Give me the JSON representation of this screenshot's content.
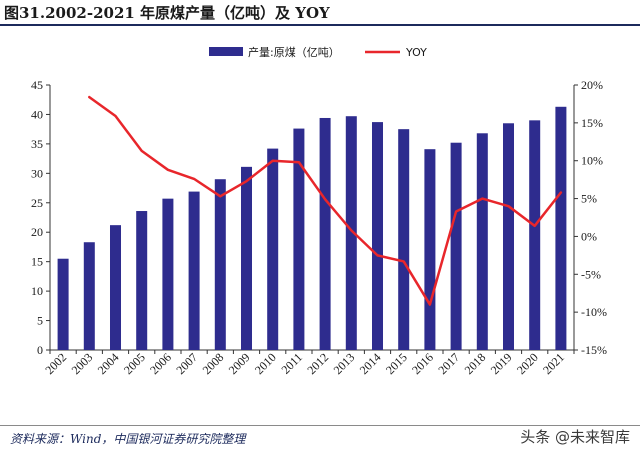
{
  "header": {
    "title": "图31.2002-2021 年原煤产量（亿吨）及 YOY"
  },
  "footer": {
    "source": "资料来源：Wind，中国银河证券研究院整理",
    "watermark": "头条 @未来智库"
  },
  "chart_data": {
    "type": "bar",
    "categories": [
      "2002",
      "2003",
      "2004",
      "2005",
      "2006",
      "2007",
      "2008",
      "2009",
      "2010",
      "2011",
      "2012",
      "2013",
      "2014",
      "2015",
      "2016",
      "2017",
      "2018",
      "2019",
      "2020",
      "2021"
    ],
    "series": [
      {
        "name": "产量:原煤（亿吨）",
        "type": "bar",
        "axis": "left",
        "color": "#2e2c8e",
        "values": [
          15.5,
          18.3,
          21.2,
          23.6,
          25.7,
          26.9,
          29.0,
          31.1,
          34.2,
          37.6,
          39.4,
          39.7,
          38.7,
          37.5,
          34.1,
          35.2,
          36.8,
          38.5,
          39.0,
          41.3
        ]
      },
      {
        "name": "YOY",
        "type": "line",
        "axis": "right",
        "color": "#e8262b",
        "values": [
          null,
          18.4,
          15.9,
          11.3,
          8.8,
          7.6,
          5.3,
          7.3,
          10.0,
          9.8,
          4.9,
          0.8,
          -2.5,
          -3.3,
          -9.0,
          3.3,
          5.0,
          4.0,
          1.4,
          5.8
        ]
      }
    ],
    "y_left": {
      "ylim": [
        0,
        45
      ],
      "ticks": [
        "0",
        "5",
        "10",
        "15",
        "20",
        "25",
        "30",
        "35",
        "40",
        "45"
      ]
    },
    "y_right": {
      "ylim": [
        -15,
        20
      ],
      "ticks": [
        "-15%",
        "-10%",
        "-5%",
        "0%",
        "5%",
        "10%",
        "15%",
        "20%"
      ]
    },
    "legend": {
      "position": "top-center"
    },
    "grid": false
  }
}
